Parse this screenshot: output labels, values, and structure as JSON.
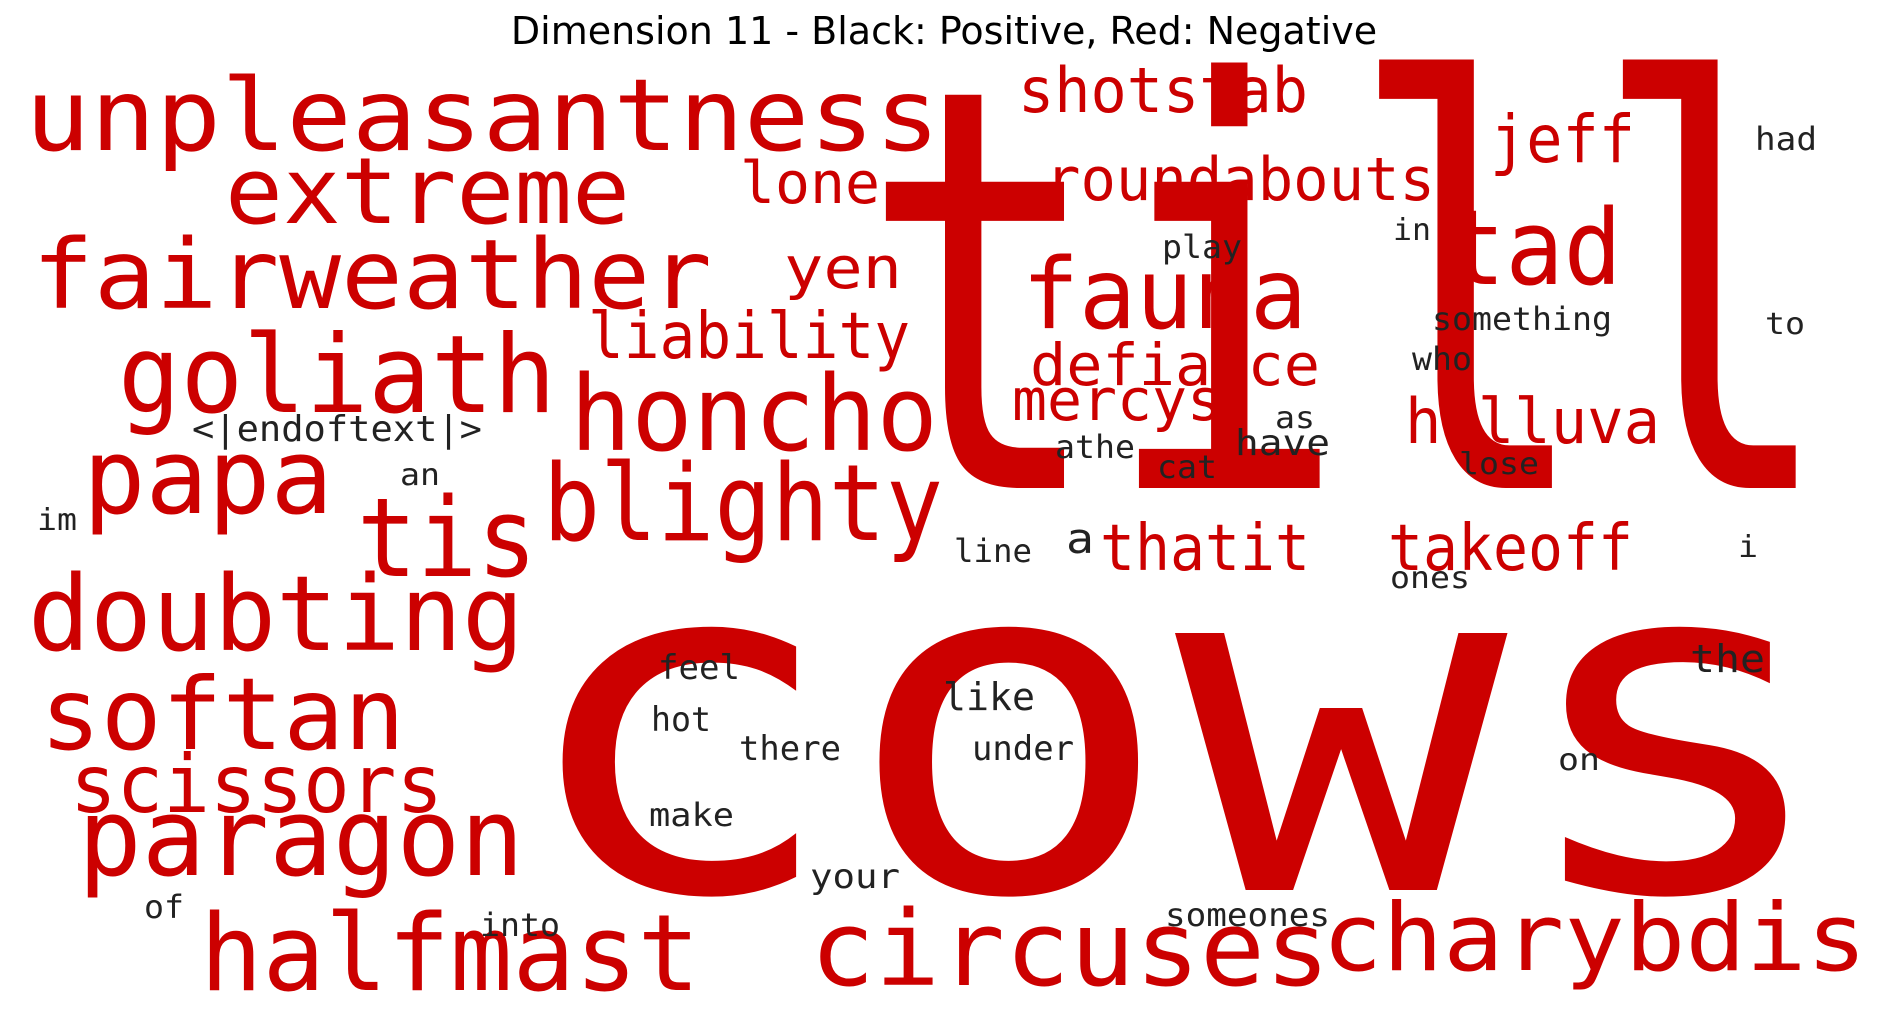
{
  "title": "Dimension 11 - Black: Positive, Red: Negative",
  "colors": {
    "positive": "#222222",
    "negative": "#cc0000"
  },
  "words": [
    {
      "text": "till",
      "color": "negative"
    },
    {
      "text": "cows",
      "color": "negative"
    },
    {
      "text": "unpleasantness",
      "color": "negative"
    },
    {
      "text": "extreme",
      "color": "negative"
    },
    {
      "text": "fairweather",
      "color": "negative"
    },
    {
      "text": "goliath",
      "color": "negative"
    },
    {
      "text": "papa",
      "color": "negative"
    },
    {
      "text": "tis",
      "color": "negative"
    },
    {
      "text": "doubting",
      "color": "negative"
    },
    {
      "text": "softan",
      "color": "negative"
    },
    {
      "text": "scissors",
      "color": "negative"
    },
    {
      "text": "paragon",
      "color": "negative"
    },
    {
      "text": "halfmast",
      "color": "negative"
    },
    {
      "text": "honcho",
      "color": "negative"
    },
    {
      "text": "blighty",
      "color": "negative"
    },
    {
      "text": "liability",
      "color": "negative"
    },
    {
      "text": "yen",
      "color": "negative"
    },
    {
      "text": "lone",
      "color": "negative"
    },
    {
      "text": "shotstab",
      "color": "negative"
    },
    {
      "text": "roundabouts",
      "color": "negative"
    },
    {
      "text": "fauna",
      "color": "negative"
    },
    {
      "text": "defiance",
      "color": "negative"
    },
    {
      "text": "mercys",
      "color": "negative"
    },
    {
      "text": "jeff",
      "color": "negative"
    },
    {
      "text": "tad",
      "color": "negative"
    },
    {
      "text": "helluva",
      "color": "negative"
    },
    {
      "text": "thatit",
      "color": "negative"
    },
    {
      "text": "takeoff",
      "color": "negative"
    },
    {
      "text": "circuses",
      "color": "negative"
    },
    {
      "text": "charybdis",
      "color": "negative"
    },
    {
      "text": "<|endoftext|>",
      "color": "positive"
    },
    {
      "text": "an",
      "color": "positive"
    },
    {
      "text": "im",
      "color": "positive"
    },
    {
      "text": "had",
      "color": "positive"
    },
    {
      "text": "in",
      "color": "positive"
    },
    {
      "text": "play",
      "color": "positive"
    },
    {
      "text": "something",
      "color": "positive"
    },
    {
      "text": "to",
      "color": "positive"
    },
    {
      "text": "who",
      "color": "positive"
    },
    {
      "text": "as",
      "color": "positive"
    },
    {
      "text": "have",
      "color": "positive"
    },
    {
      "text": "athe",
      "color": "positive"
    },
    {
      "text": "cat",
      "color": "positive"
    },
    {
      "text": "lose",
      "color": "positive"
    },
    {
      "text": "line",
      "color": "positive"
    },
    {
      "text": "a",
      "color": "positive"
    },
    {
      "text": "i",
      "color": "positive"
    },
    {
      "text": "ones",
      "color": "positive"
    },
    {
      "text": "the",
      "color": "positive"
    },
    {
      "text": "feel",
      "color": "positive"
    },
    {
      "text": "like",
      "color": "positive"
    },
    {
      "text": "hot",
      "color": "positive"
    },
    {
      "text": "there",
      "color": "positive"
    },
    {
      "text": "under",
      "color": "positive"
    },
    {
      "text": "on",
      "color": "positive"
    },
    {
      "text": "make",
      "color": "positive"
    },
    {
      "text": "your",
      "color": "positive"
    },
    {
      "text": "of",
      "color": "positive"
    },
    {
      "text": "into",
      "color": "positive"
    },
    {
      "text": "someones",
      "color": "positive"
    }
  ]
}
